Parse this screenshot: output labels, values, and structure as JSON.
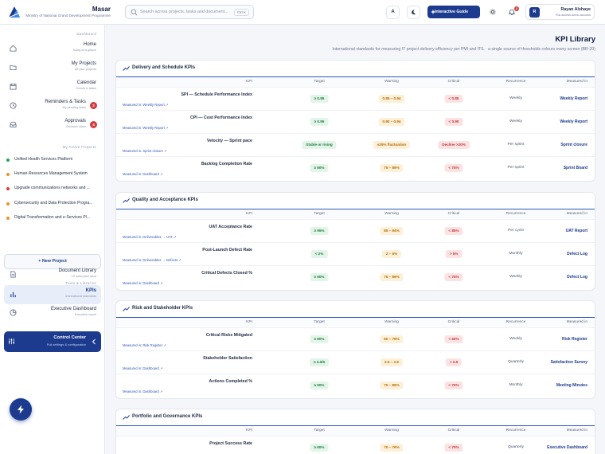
{
  "brand": {
    "name": "Masar",
    "subtitle": "Ministry of National Grand Development Programme"
  },
  "search": {
    "placeholder": "Search across projects, tasks and document...",
    "shortcut": "Ctrl K"
  },
  "topbar": {
    "lang_label": "A",
    "guide_label": "Interactive Guide",
    "notif_count": "8"
  },
  "user": {
    "initial": "R",
    "name": "Rayan Alshaye",
    "role": "Full access demo account"
  },
  "sidebar": {
    "dashboard_header": "Dashboard",
    "nav": [
      {
        "label": "Home",
        "sub": "Today at a glance",
        "icon": "home-icon"
      },
      {
        "label": "My Projects",
        "sub": "All your projects",
        "icon": "folder-icon"
      },
      {
        "label": "Calendar",
        "sub": "Events & dates",
        "icon": "calendar-icon"
      },
      {
        "label": "Reminders & Tasks",
        "sub": "My pending tasks",
        "badge": "2",
        "icon": "clock-icon"
      },
      {
        "label": "Approvals",
        "sub": "Decision inbox",
        "badge": "4",
        "icon": "inbox-icon"
      }
    ],
    "projects_header": "My Active Projects",
    "projects": [
      {
        "name": "Unified Health Services Platform",
        "color": "#2e9e5b"
      },
      {
        "name": "Human Resources Management System",
        "color": "#e3962c"
      },
      {
        "name": "Upgrade communications networks and ...",
        "color": "#d43c3c"
      },
      {
        "name": "Cybersecurity and Data Protection Progra...",
        "color": "#e3962c"
      },
      {
        "name": "Digital Transformation and e-Services Pl...",
        "color": "#e3962c"
      }
    ],
    "new_project_label": "New Project",
    "tools_header": "Tools & Libraries",
    "tools": [
      {
        "label": "Document Library",
        "sub": "12 enterprise docs",
        "icon": "document-icon"
      },
      {
        "label": "KPIs",
        "sub": "International standards",
        "icon": "bar-chart-icon",
        "active": true
      },
      {
        "label": "Executive Dashboard",
        "sub": "Executive report",
        "icon": "pie-chart-icon"
      }
    ],
    "control_center": {
      "title": "Control Center",
      "sub": "Full settings & configuration"
    }
  },
  "page": {
    "title": "KPI Library",
    "subtitle": "International standards for measuring IT project delivery efficiency per PMI and ITIL · a single source of thresholds colours every screen (BR-20)"
  },
  "columns": {
    "kpi": "KPI",
    "target": "Target",
    "warning": "Warning",
    "critical": "Critical",
    "recurrence": "Recurrence",
    "measured_in": "Measured in"
  },
  "sections": [
    {
      "title": "Delivery and Schedule KPIs",
      "rows": [
        {
          "kpi": "SPI — Schedule Performance Index",
          "measured": "Measured in: Weekly Report ↗",
          "target": "≥ 0.95",
          "warning": "0.85 – 0.94",
          "critical": "< 0.85",
          "recurrence": "Weekly",
          "measured_in": "Weekly Report"
        },
        {
          "kpi": "CPI — Cost Performance Index",
          "measured": "Measured in: Weekly Report ↗",
          "target": "≥ 0.95",
          "warning": "0.90 – 0.94",
          "critical": "< 0.90",
          "recurrence": "Weekly",
          "measured_in": "Weekly Report"
        },
        {
          "kpi": "Velocity — Sprint pace",
          "measured": "Measured in: Sprint closure ↗",
          "target": "Stable or rising",
          "warning": "±25% fluctuation",
          "critical": "Decline >20%",
          "recurrence": "Per sprint",
          "measured_in": "Sprint closure"
        },
        {
          "kpi": "Backlog Completion Rate",
          "measured": "Measured in: Dashboard ↗",
          "target": "≥ 90%",
          "warning": "75 – 89%",
          "critical": "< 75%",
          "recurrence": "Per sprint",
          "measured_in": "Sprint Board"
        }
      ]
    },
    {
      "title": "Quality and Acceptance KPIs",
      "rows": [
        {
          "kpi": "UAT Acceptance Rate",
          "measured": "Measured in: Deliverables → UAT ↗",
          "target": "≥ 95%",
          "warning": "85 – 94%",
          "critical": "< 85%",
          "recurrence": "Per cycle",
          "measured_in": "UAT Report"
        },
        {
          "kpi": "Post-Launch Defect Rate",
          "measured": "Measured in: Deliverables → Defects ↗",
          "target": "< 2%",
          "warning": "2 – 5%",
          "critical": "> 5%",
          "recurrence": "Monthly",
          "measured_in": "Defect Log"
        },
        {
          "kpi": "Critical Defects Closed %",
          "measured": "Measured in: Dashboard ↗",
          "target": "≥ 90%",
          "warning": "75 – 89%",
          "critical": "< 75%",
          "recurrence": "Weekly",
          "measured_in": "Defect Log"
        }
      ]
    },
    {
      "title": "Risk and Stakeholder KPIs",
      "rows": [
        {
          "kpi": "Critical Risks Mitigated",
          "measured": "Measured in: Risk Register ↗",
          "target": "≥ 80%",
          "warning": "60 – 79%",
          "critical": "< 60%",
          "recurrence": "Weekly",
          "measured_in": "Risk Register"
        },
        {
          "kpi": "Stakeholder Satisfaction",
          "measured": "Measured in: Dashboard ↗",
          "target": "≥ 4.0/5",
          "warning": "3.5 – 3.9",
          "critical": "< 3.5",
          "recurrence": "Quarterly",
          "measured_in": "Satisfaction Survey"
        },
        {
          "kpi": "Actions Completed %",
          "measured": "Measured in: Dashboard ↗",
          "target": "≥ 90%",
          "warning": "70 – 89%",
          "critical": "< 70%",
          "recurrence": "Monthly",
          "measured_in": "Meeting Minutes"
        }
      ]
    },
    {
      "title": "Portfolio and Governance KPIs",
      "rows": [
        {
          "kpi": "Project Success Rate",
          "measured": "",
          "target": "≥ 80%",
          "warning": "70 – 79%",
          "critical": "< 70%",
          "recurrence": "Quarterly",
          "measured_in": "Executive Dashboard"
        }
      ]
    }
  ]
}
